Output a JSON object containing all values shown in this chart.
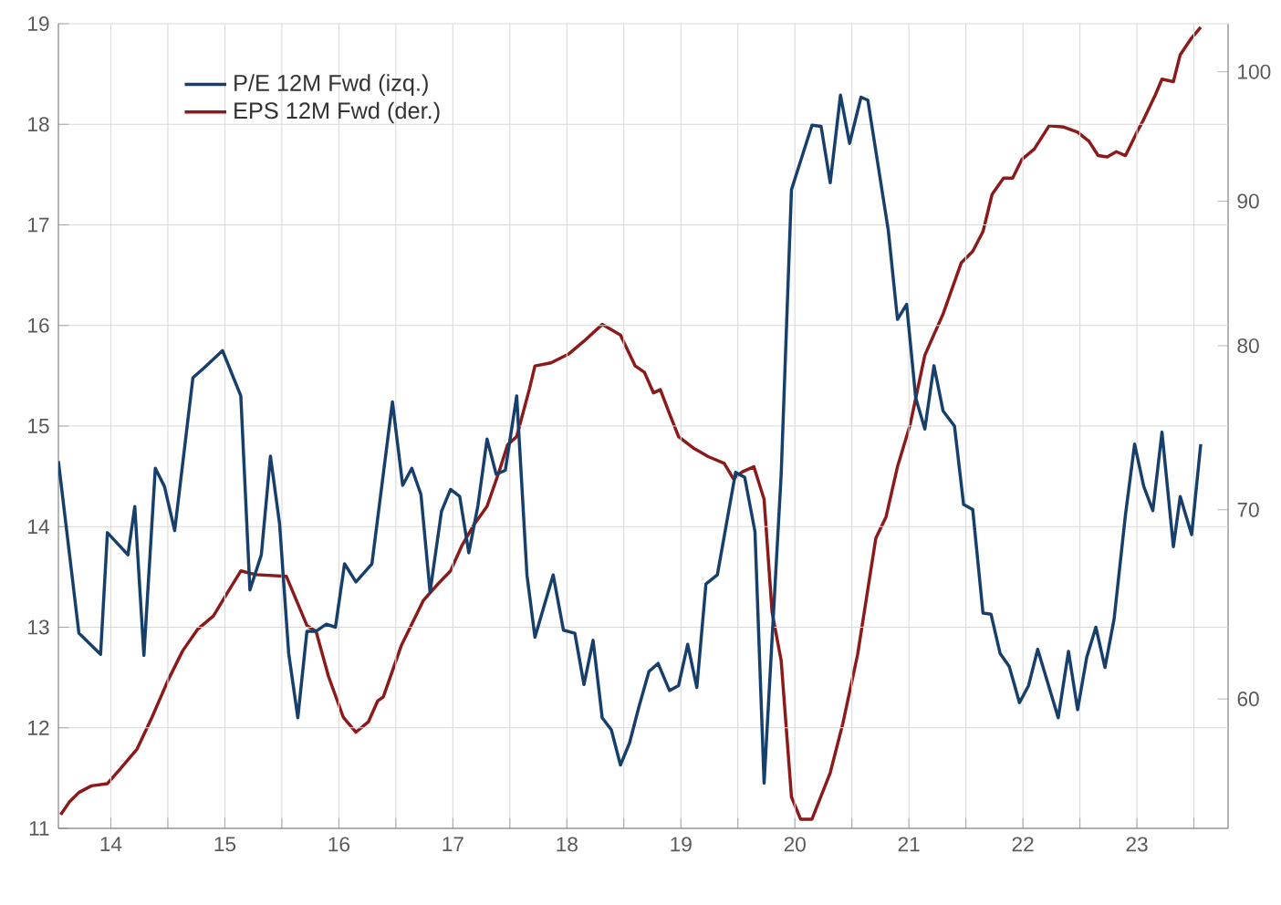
{
  "chart_data": {
    "type": "line",
    "xlim": [
      13.54,
      23.8
    ],
    "xticks": [
      14,
      {
        "value": 14.5,
        "label": null
      },
      15,
      {
        "value": 15.5,
        "label": null
      },
      16,
      {
        "value": 16.5,
        "label": null
      },
      17,
      {
        "value": 17.5,
        "label": null
      },
      18,
      {
        "value": 18.5,
        "label": null
      },
      19,
      {
        "value": 19.5,
        "label": null
      },
      20,
      {
        "value": 20.5,
        "label": null
      },
      21,
      {
        "value": 21.5,
        "label": null
      },
      22,
      {
        "value": 22.5,
        "label": null
      },
      23,
      {
        "value": 23.5,
        "label": null
      }
    ],
    "ylim": [
      11,
      19
    ],
    "yticks": [
      11,
      12,
      13,
      14,
      15,
      16,
      17,
      18,
      19
    ],
    "y2lim": [
      54,
      104
    ],
    "y2ticks": [
      60,
      70,
      80,
      90,
      100
    ],
    "log": "y2",
    "grid": true,
    "legend": "top left",
    "series": [
      {
        "name": "P/E 12M Fwd (izq.)",
        "color": "#173f6b",
        "axis": "y",
        "x": [
          13.54,
          13.72,
          13.91,
          13.97,
          14.15,
          14.21,
          14.29,
          14.39,
          14.47,
          14.56,
          14.72,
          14.82,
          14.98,
          15.14,
          15.22,
          15.32,
          15.4,
          15.48,
          15.56,
          15.64,
          15.72,
          15.8,
          15.89,
          15.97,
          16.05,
          16.15,
          16.29,
          16.47,
          16.56,
          16.64,
          16.72,
          16.8,
          16.9,
          16.98,
          17.06,
          17.14,
          17.22,
          17.3,
          17.38,
          17.46,
          17.56,
          17.65,
          17.72,
          17.88,
          17.97,
          18.07,
          18.15,
          18.23,
          18.31,
          18.39,
          18.47,
          18.55,
          18.63,
          18.72,
          18.8,
          18.9,
          18.98,
          19.06,
          19.14,
          19.22,
          19.32,
          19.48,
          19.56,
          19.65,
          19.73,
          19.88,
          19.97,
          20.15,
          20.23,
          20.31,
          20.4,
          20.48,
          20.58,
          20.64,
          20.82,
          20.9,
          20.98,
          21.06,
          21.14,
          21.22,
          21.3,
          21.4,
          21.48,
          21.56,
          21.65,
          21.72,
          21.8,
          21.88,
          21.97,
          22.05,
          22.13,
          22.31,
          22.4,
          22.48,
          22.56,
          22.64,
          22.72,
          22.8,
          22.9,
          22.98,
          23.06,
          23.14,
          23.22,
          23.32,
          23.38,
          23.48,
          23.56
        ],
        "values": [
          14.65,
          12.94,
          12.73,
          13.94,
          13.72,
          14.2,
          12.72,
          14.58,
          14.4,
          13.96,
          15.48,
          15.58,
          15.75,
          15.3,
          13.37,
          13.72,
          14.7,
          14.03,
          12.74,
          12.1,
          12.96,
          12.96,
          13.03,
          13.0,
          13.63,
          13.45,
          13.63,
          15.24,
          14.41,
          14.58,
          14.32,
          13.35,
          14.15,
          14.37,
          14.3,
          13.74,
          14.21,
          14.87,
          14.52,
          14.56,
          15.3,
          13.52,
          12.9,
          13.52,
          12.97,
          12.94,
          12.43,
          12.87,
          12.1,
          11.98,
          11.63,
          11.85,
          12.2,
          12.56,
          12.64,
          12.37,
          12.42,
          12.83,
          12.4,
          13.43,
          13.52,
          14.54,
          14.49,
          13.95,
          11.45,
          14.52,
          17.35,
          17.99,
          17.98,
          17.42,
          18.29,
          17.81,
          18.27,
          18.24,
          16.94,
          16.06,
          16.21,
          15.28,
          14.97,
          15.6,
          15.15,
          15.0,
          14.22,
          14.17,
          13.14,
          13.13,
          12.74,
          12.61,
          12.25,
          12.42,
          12.78,
          12.1,
          12.76,
          12.18,
          12.7,
          13.0,
          12.6,
          13.08,
          14.12,
          14.82,
          14.4,
          14.16,
          14.94,
          13.8,
          14.3,
          13.92,
          14.82
        ]
      },
      {
        "name": "EPS 12M Fwd (der.)",
        "color": "#8b1a1a",
        "axis": "y2",
        "x": [
          13.56,
          13.64,
          13.72,
          13.83,
          13.97,
          14.07,
          14.23,
          14.36,
          14.5,
          14.63,
          14.76,
          14.9,
          15.0,
          15.14,
          15.27,
          15.54,
          15.72,
          15.8,
          15.91,
          16.04,
          16.15,
          16.26,
          16.34,
          16.39,
          16.55,
          16.74,
          16.87,
          16.98,
          17.08,
          17.19,
          17.3,
          17.4,
          17.48,
          17.56,
          17.67,
          17.72,
          17.86,
          18.02,
          18.15,
          18.31,
          18.47,
          18.6,
          18.68,
          18.76,
          18.82,
          18.9,
          18.98,
          19.11,
          19.24,
          19.38,
          19.46,
          19.54,
          19.64,
          19.73,
          19.8,
          19.88,
          19.97,
          20.05,
          20.15,
          20.31,
          20.42,
          20.55,
          20.71,
          20.8,
          20.9,
          21.01,
          21.14,
          21.3,
          21.46,
          21.56,
          21.65,
          21.73,
          21.83,
          21.91,
          21.99,
          22.1,
          22.23,
          22.36,
          22.48,
          22.58,
          22.66,
          22.74,
          22.82,
          22.9,
          23.0,
          23.06,
          23.16,
          23.22,
          23.32,
          23.38,
          23.48,
          23.56
        ],
        "values": [
          54.6,
          55.2,
          55.6,
          55.9,
          56.0,
          56.6,
          57.6,
          59.1,
          60.9,
          62.4,
          63.5,
          64.2,
          65.2,
          66.6,
          66.4,
          66.3,
          63.7,
          63.4,
          61.1,
          59.1,
          58.4,
          58.9,
          59.9,
          60.1,
          62.7,
          65.0,
          65.9,
          66.6,
          68.0,
          69.2,
          70.2,
          72.1,
          73.8,
          74.3,
          77.2,
          78.7,
          78.9,
          79.5,
          80.3,
          81.4,
          80.7,
          78.7,
          78.3,
          77.0,
          77.2,
          75.7,
          74.3,
          73.6,
          73.1,
          72.7,
          71.8,
          72.2,
          72.5,
          70.6,
          64.4,
          61.9,
          55.4,
          54.4,
          54.4,
          56.5,
          58.8,
          62.2,
          68.4,
          69.6,
          72.5,
          75.0,
          79.4,
          82.1,
          85.6,
          86.4,
          87.8,
          90.5,
          91.7,
          91.7,
          93.1,
          93.9,
          95.7,
          95.6,
          95.2,
          94.5,
          93.4,
          93.3,
          93.7,
          93.4,
          95.2,
          96.2,
          98.1,
          99.4,
          99.2,
          101.4,
          102.8,
          103.7
        ]
      }
    ]
  }
}
